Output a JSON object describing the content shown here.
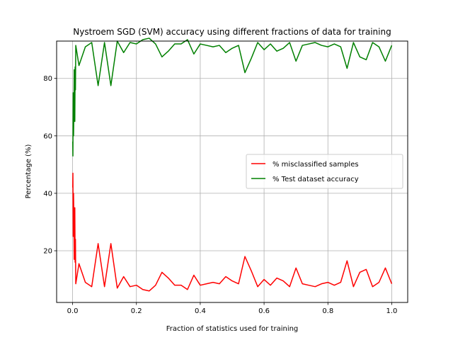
{
  "chart_data": {
    "type": "line",
    "title": "Nystroem SGD (SVM)  accuracy using different fractions of data for training",
    "xlabel": "Fraction of statistics used for training",
    "ylabel": "Percentage (%)",
    "xlim": [
      -0.05,
      1.05
    ],
    "ylim": [
      2,
      93
    ],
    "xticks": [
      0.0,
      0.2,
      0.4,
      0.6,
      0.8,
      1.0
    ],
    "xtick_labels": [
      "0.0",
      "0.2",
      "0.4",
      "0.6",
      "0.8",
      "1.0"
    ],
    "yticks": [
      20,
      40,
      60,
      80
    ],
    "ytick_labels": [
      "20",
      "40",
      "60",
      "80"
    ],
    "grid": true,
    "legend_position": "center-right",
    "series": [
      {
        "name": "% misclassified samples",
        "color": "#ff0000",
        "x": [
          0.0005,
          0.001,
          0.0015,
          0.002,
          0.003,
          0.004,
          0.005,
          0.006,
          0.007,
          0.008,
          0.009,
          0.01,
          0.02,
          0.04,
          0.06,
          0.08,
          0.1,
          0.12,
          0.14,
          0.16,
          0.18,
          0.2,
          0.22,
          0.24,
          0.26,
          0.28,
          0.3,
          0.32,
          0.34,
          0.36,
          0.38,
          0.4,
          0.42,
          0.44,
          0.46,
          0.48,
          0.5,
          0.52,
          0.54,
          0.56,
          0.58,
          0.6,
          0.62,
          0.64,
          0.66,
          0.68,
          0.7,
          0.72,
          0.74,
          0.76,
          0.78,
          0.8,
          0.82,
          0.84,
          0.86,
          0.88,
          0.9,
          0.92,
          0.94,
          0.96,
          0.98,
          1.0
        ],
        "values": [
          42,
          47,
          35,
          25,
          40,
          32,
          17,
          27,
          35,
          16,
          24,
          8.5,
          15.5,
          9,
          7.5,
          22.5,
          7.5,
          22.5,
          7,
          11,
          7.5,
          8,
          6.5,
          6,
          8,
          12.5,
          10.5,
          8,
          8,
          6.5,
          11.5,
          8,
          8.5,
          9,
          8.5,
          11,
          9.5,
          8.5,
          18,
          13,
          7.5,
          10,
          8,
          10.5,
          9.5,
          7.5,
          14,
          8.5,
          8,
          7.5,
          8.5,
          9,
          8,
          9,
          16.5,
          7.5,
          12.5,
          13.5,
          7.5,
          9,
          14,
          8.5
        ]
      },
      {
        "name": "% Test dataset accuracy",
        "color": "#008000",
        "x": [
          0.0005,
          0.001,
          0.0015,
          0.002,
          0.003,
          0.004,
          0.005,
          0.006,
          0.007,
          0.008,
          0.009,
          0.01,
          0.02,
          0.04,
          0.06,
          0.08,
          0.1,
          0.12,
          0.14,
          0.16,
          0.18,
          0.2,
          0.22,
          0.24,
          0.26,
          0.28,
          0.3,
          0.32,
          0.34,
          0.36,
          0.38,
          0.4,
          0.42,
          0.44,
          0.46,
          0.48,
          0.5,
          0.52,
          0.54,
          0.56,
          0.58,
          0.6,
          0.62,
          0.64,
          0.66,
          0.68,
          0.7,
          0.72,
          0.74,
          0.76,
          0.78,
          0.8,
          0.82,
          0.84,
          0.86,
          0.88,
          0.9,
          0.92,
          0.94,
          0.96,
          0.98,
          1.0
        ],
        "values": [
          58,
          53,
          65,
          75,
          60,
          68,
          83,
          73,
          65,
          84,
          76,
          91.5,
          84.5,
          91,
          92.5,
          77.5,
          92.5,
          77.5,
          93,
          89,
          92.5,
          92,
          93.5,
          94,
          92,
          87.5,
          89.5,
          92,
          92,
          93.5,
          88.5,
          92,
          91.5,
          91,
          91.5,
          89,
          90.5,
          91.5,
          82,
          87,
          92.5,
          90,
          92,
          89.5,
          90.5,
          92.5,
          86,
          91.5,
          92,
          92.5,
          91.5,
          91,
          92,
          91,
          83.5,
          92.5,
          87.5,
          86.5,
          92.5,
          91,
          86,
          91.5
        ]
      }
    ]
  }
}
